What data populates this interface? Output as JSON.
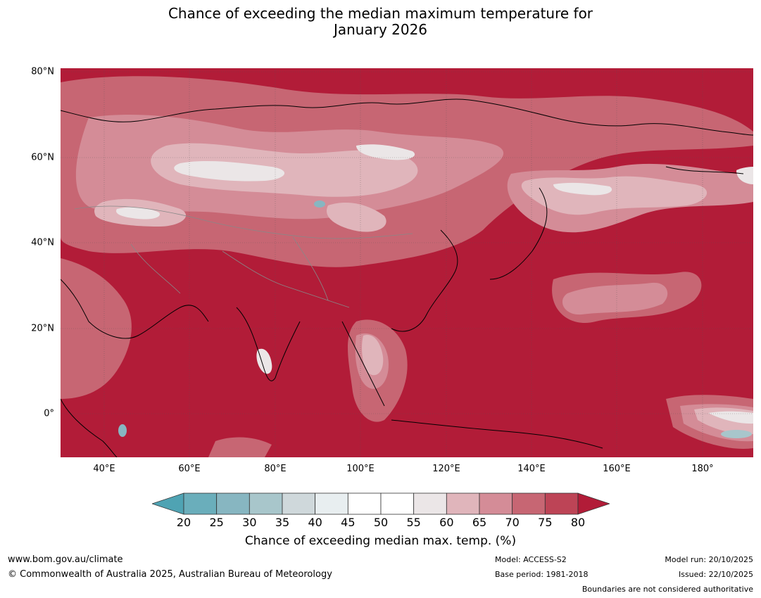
{
  "title_line1": "Chance of exceeding the median maximum temperature for",
  "title_line2": "January 2026",
  "lat_labels": [
    "80°N",
    "60°N",
    "40°N",
    "20°N",
    "0°"
  ],
  "lon_labels": [
    "40°E",
    "60°E",
    "80°E",
    "100°E",
    "120°E",
    "140°E",
    "160°E",
    "180°"
  ],
  "colorbar": {
    "ticks": [
      "20",
      "25",
      "30",
      "35",
      "40",
      "45",
      "50",
      "55",
      "60",
      "65",
      "70",
      "75",
      "80"
    ],
    "colors": [
      "#6aaebb",
      "#87b6c1",
      "#a8c6cb",
      "#cfd8db",
      "#e8eef0",
      "#ffffff",
      "#ffffff",
      "#ebe6e7",
      "#e0b5bb",
      "#d48c97",
      "#c76673",
      "#bd4456"
    ],
    "low_extend_color": "#4fa3b3",
    "high_extend_color": "#b21c38",
    "label": "Chance of exceeding median max. temp. (%)"
  },
  "footer": {
    "website": "www.bom.gov.au/climate",
    "copyright": "© Commonwealth of Australia 2025, Australian Bureau of Meteorology",
    "model": "Model: ACCESS-S2",
    "base_period": "Base period: 1981-2018",
    "model_run": "Model run: 20/10/2025",
    "issued": "Issued: 22/10/2025",
    "disclaimer": "Boundaries are not considered authoritative"
  }
}
